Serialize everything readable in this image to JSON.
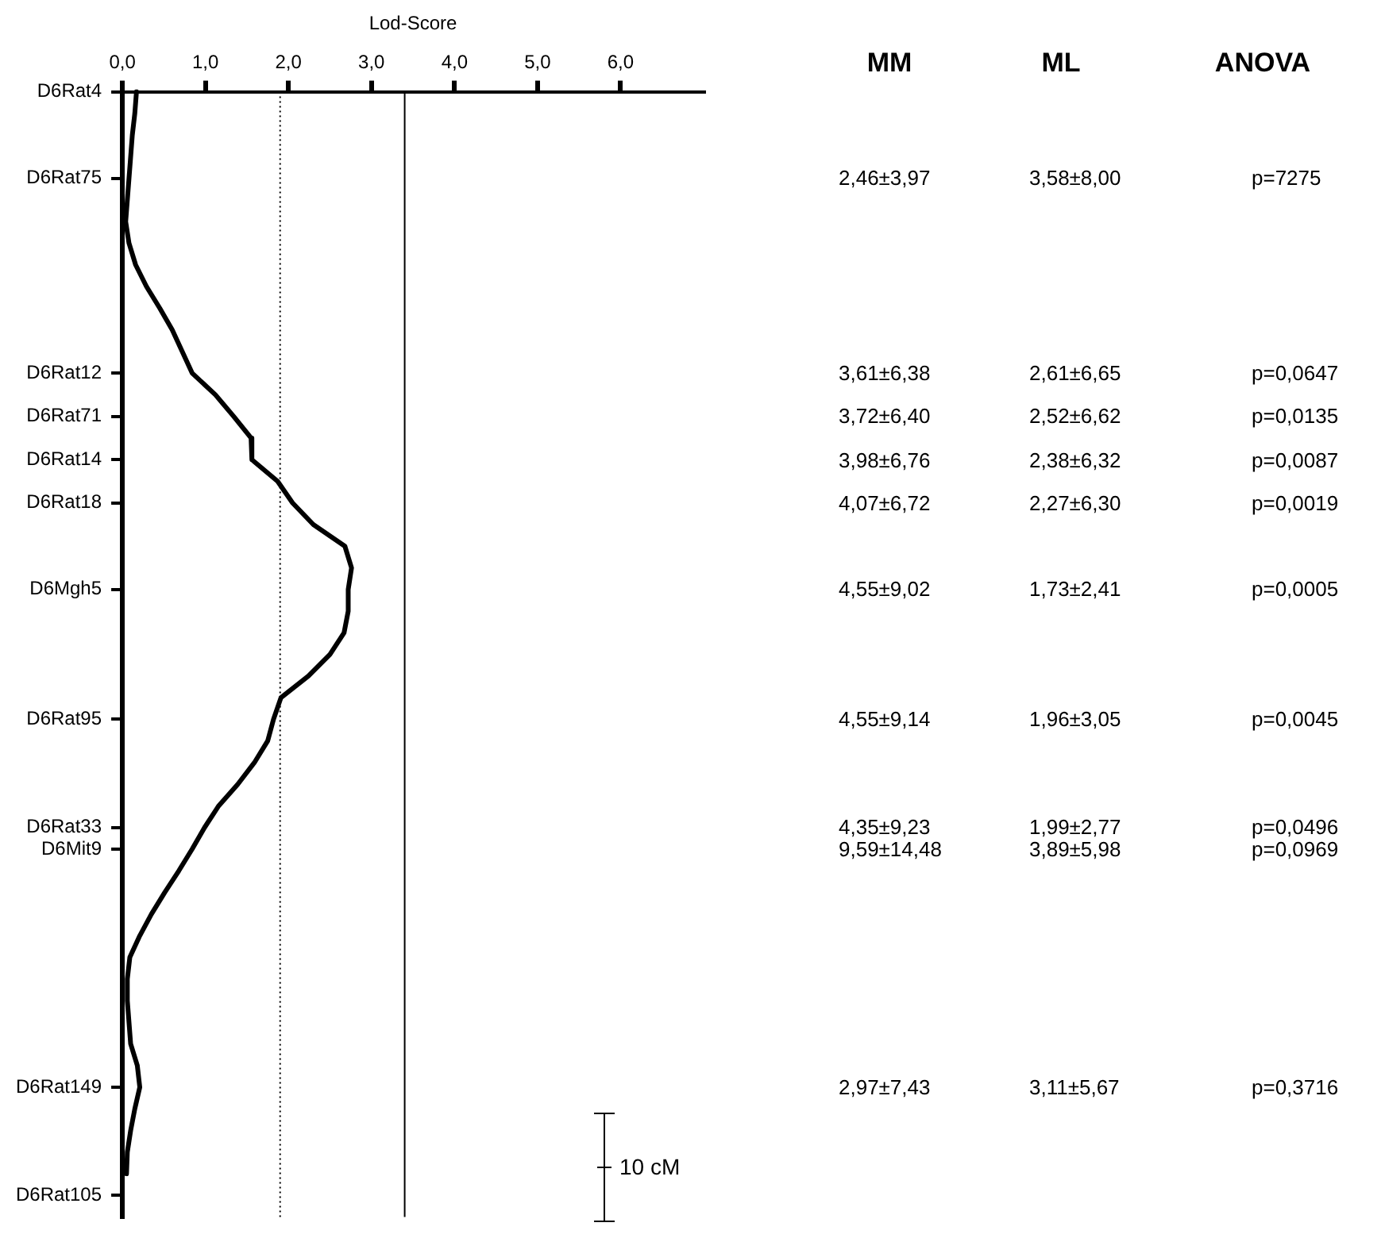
{
  "chart_data": [
    {
      "type": "line",
      "orientation": "horizontal",
      "xlabel": "Lod-Score",
      "annotations": [
        "10 cM"
      ],
      "categories": [
        "D6Rat4",
        null,
        null,
        null,
        "D6Rat75",
        null,
        null,
        null,
        null,
        null,
        null,
        null,
        null,
        "D6Rat12",
        null,
        "D6Rat71",
        null,
        "D6Rat14",
        null,
        "D6Rat18",
        null,
        null,
        null,
        "D6Mgh5",
        null,
        null,
        null,
        null,
        null,
        "D6Rat95",
        null,
        null,
        null,
        null,
        "D6Rat33",
        "D6Mit9",
        null,
        null,
        null,
        null,
        null,
        null,
        null,
        null,
        null,
        null,
        "D6Rat149",
        null,
        null,
        null,
        null,
        "D6Rat105",
        null
      ],
      "values": [
        0.17,
        0.15,
        0.12,
        0.1,
        0.08,
        0.06,
        0.04,
        0.08,
        0.16,
        0.29,
        0.45,
        0.6,
        0.72,
        0.84,
        1.12,
        1.34,
        1.55,
        1.56,
        1.87,
        2.05,
        2.3,
        2.68,
        2.76,
        2.72,
        2.72,
        2.67,
        2.5,
        2.24,
        1.91,
        1.82,
        1.75,
        1.59,
        1.39,
        1.16,
        0.99,
        0.84,
        0.68,
        0.51,
        0.35,
        0.21,
        0.09,
        0.06,
        0.06,
        0.08,
        0.1,
        0.18,
        0.21,
        0.15,
        0.1,
        0.06,
        0.05,
        null,
        null
      ],
      "color": "#000000",
      "marker": "none",
      "line_style": "solid",
      "grid": false,
      "legend": false,
      "xlim": [
        0,
        7
      ],
      "xticks": [
        {
          "value": 0,
          "label": "0,0"
        },
        {
          "value": 1,
          "label": "1,0"
        },
        {
          "value": 2,
          "label": "2,0"
        },
        {
          "value": 3,
          "label": "3,0"
        },
        {
          "value": 4,
          "label": "4,0"
        },
        {
          "value": 5,
          "label": "5,0"
        },
        {
          "value": 6,
          "label": "6,0"
        }
      ],
      "ref_lines": [
        {
          "axis": "x",
          "value": 1.9,
          "line_style": "dotted"
        },
        {
          "axis": "x",
          "value": 3.4,
          "line_style": "solid"
        }
      ]
    },
    {
      "type": "other",
      "categories": [
        "MM",
        "ML",
        "ANOVA"
      ],
      "cell_labels": [
        null,
        [
          "2,46±3,97",
          "3,58±8,00",
          "p=7275"
        ],
        [
          "3,61±6,38",
          "2,61±6,65",
          "p=0,0647"
        ],
        [
          "3,72±6,40",
          "2,52±6,62",
          "p=0,0135"
        ],
        [
          "3,98±6,76",
          "2,38±6,32",
          "p=0,0087"
        ],
        [
          "4,07±6,72",
          "2,27±6,30",
          "p=0,0019"
        ],
        [
          "4,55±9,02",
          "1,73±2,41",
          "p=0,0005"
        ],
        [
          "4,55±9,14",
          "1,96±3,05",
          "p=0,0045"
        ],
        [
          "4,35±9,23",
          "1,99±2,77",
          "p=0,0496"
        ],
        [
          "9,59±14,48",
          "3,89±5,98",
          "p=0,0969"
        ],
        [
          "2,97±7,43",
          "3,11±5,67",
          "p=0,3716"
        ],
        null
      ]
    }
  ]
}
